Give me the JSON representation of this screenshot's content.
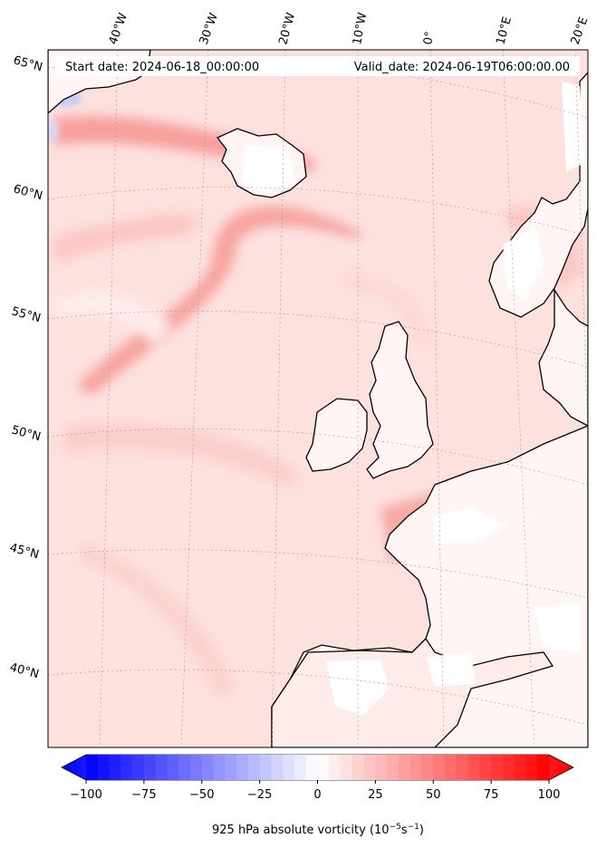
{
  "header": {
    "start_date": "Start date: 2024-06-18_00:00:00",
    "valid_date": "Valid_date: 2024-06-19T06:00:00.00"
  },
  "longitude_labels": [
    "40°W",
    "30°W",
    "20°W",
    "10°W",
    "0°",
    "10°E",
    "20°E"
  ],
  "latitude_labels": [
    "65°N",
    "60°N",
    "55°N",
    "50°N",
    "45°N",
    "40°N"
  ],
  "colorbar": {
    "min": -100,
    "max": 100,
    "ticks": [
      "−100",
      "−75",
      "−50",
      "−25",
      "0",
      "25",
      "50",
      "75",
      "100"
    ],
    "label": "925 hPa absolute vorticity (10",
    "label_unit_a": "−5",
    "label_mid": "s",
    "label_unit_b": "−1",
    "label_end": ")",
    "colors": {
      "negative": "#0000ff",
      "zero": "#ffffff",
      "positive": "#ff0000"
    }
  },
  "map": {
    "field_name": "925 hPa absolute vorticity",
    "ocean_tint": "#fde3e1",
    "land_tint": "#fdeceb",
    "coast_color": "#000000"
  }
}
